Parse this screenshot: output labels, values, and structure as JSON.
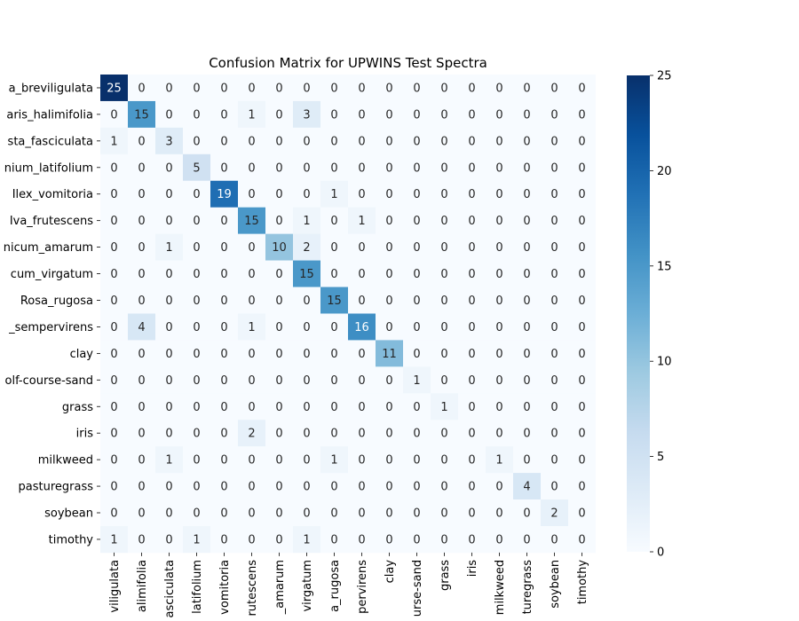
{
  "chart_data": {
    "type": "heatmap",
    "title": "Confusion Matrix for UPWINS Test Spectra",
    "xlabel": "",
    "ylabel": "",
    "row_labels": [
      "a_breviligulata",
      "aris_halimifolia",
      "sta_fasciculata",
      "nium_latifolium",
      "Ilex_vomitoria",
      "Iva_frutescens",
      "nicum_amarum",
      "cum_virgatum",
      "Rosa_rugosa",
      "_sempervirens",
      "clay",
      "olf-course-sand",
      "grass",
      "iris",
      "milkweed",
      "pasturegrass",
      "soybean",
      "timothy"
    ],
    "column_labels": [
      "viligulata",
      "alimifolia",
      "asciculata",
      "latifolium",
      "vomitoria",
      "rutescens",
      "_amarum",
      "virgatum",
      "a_rugosa",
      "pervirens",
      "clay",
      "urse-sand",
      "grass",
      "iris",
      "milkweed",
      "turegrass",
      "soybean",
      "timothy"
    ],
    "matrix": [
      [
        25,
        0,
        0,
        0,
        0,
        0,
        0,
        0,
        0,
        0,
        0,
        0,
        0,
        0,
        0,
        0,
        0,
        0
      ],
      [
        0,
        15,
        0,
        0,
        0,
        1,
        0,
        3,
        0,
        0,
        0,
        0,
        0,
        0,
        0,
        0,
        0,
        0
      ],
      [
        1,
        0,
        3,
        0,
        0,
        0,
        0,
        0,
        0,
        0,
        0,
        0,
        0,
        0,
        0,
        0,
        0,
        0
      ],
      [
        0,
        0,
        0,
        5,
        0,
        0,
        0,
        0,
        0,
        0,
        0,
        0,
        0,
        0,
        0,
        0,
        0,
        0
      ],
      [
        0,
        0,
        0,
        0,
        19,
        0,
        0,
        0,
        1,
        0,
        0,
        0,
        0,
        0,
        0,
        0,
        0,
        0
      ],
      [
        0,
        0,
        0,
        0,
        0,
        15,
        0,
        1,
        0,
        1,
        0,
        0,
        0,
        0,
        0,
        0,
        0,
        0
      ],
      [
        0,
        0,
        1,
        0,
        0,
        0,
        10,
        2,
        0,
        0,
        0,
        0,
        0,
        0,
        0,
        0,
        0,
        0
      ],
      [
        0,
        0,
        0,
        0,
        0,
        0,
        0,
        15,
        0,
        0,
        0,
        0,
        0,
        0,
        0,
        0,
        0,
        0
      ],
      [
        0,
        0,
        0,
        0,
        0,
        0,
        0,
        0,
        15,
        0,
        0,
        0,
        0,
        0,
        0,
        0,
        0,
        0
      ],
      [
        0,
        4,
        0,
        0,
        0,
        1,
        0,
        0,
        0,
        16,
        0,
        0,
        0,
        0,
        0,
        0,
        0,
        0
      ],
      [
        0,
        0,
        0,
        0,
        0,
        0,
        0,
        0,
        0,
        0,
        11,
        0,
        0,
        0,
        0,
        0,
        0,
        0
      ],
      [
        0,
        0,
        0,
        0,
        0,
        0,
        0,
        0,
        0,
        0,
        0,
        1,
        0,
        0,
        0,
        0,
        0,
        0
      ],
      [
        0,
        0,
        0,
        0,
        0,
        0,
        0,
        0,
        0,
        0,
        0,
        0,
        1,
        0,
        0,
        0,
        0,
        0
      ],
      [
        0,
        0,
        0,
        0,
        0,
        2,
        0,
        0,
        0,
        0,
        0,
        0,
        0,
        0,
        0,
        0,
        0,
        0
      ],
      [
        0,
        0,
        1,
        0,
        0,
        0,
        0,
        0,
        1,
        0,
        0,
        0,
        0,
        0,
        1,
        0,
        0,
        0
      ],
      [
        0,
        0,
        0,
        0,
        0,
        0,
        0,
        0,
        0,
        0,
        0,
        0,
        0,
        0,
        0,
        4,
        0,
        0
      ],
      [
        0,
        0,
        0,
        0,
        0,
        0,
        0,
        0,
        0,
        0,
        0,
        0,
        0,
        0,
        0,
        0,
        2,
        0
      ],
      [
        1,
        0,
        0,
        1,
        0,
        0,
        0,
        1,
        0,
        0,
        0,
        0,
        0,
        0,
        0,
        0,
        0,
        0
      ]
    ],
    "value_range": [
      0,
      25
    ],
    "colorbar_ticks": [
      0,
      5,
      10,
      15,
      20,
      25
    ],
    "colormap": [
      "#f7fbff",
      "#deebf7",
      "#c6dbef",
      "#9ecae1",
      "#6baed6",
      "#4292c6",
      "#2171b5",
      "#08519c",
      "#08306b"
    ],
    "grid": false,
    "legend": "colorbar-right"
  }
}
